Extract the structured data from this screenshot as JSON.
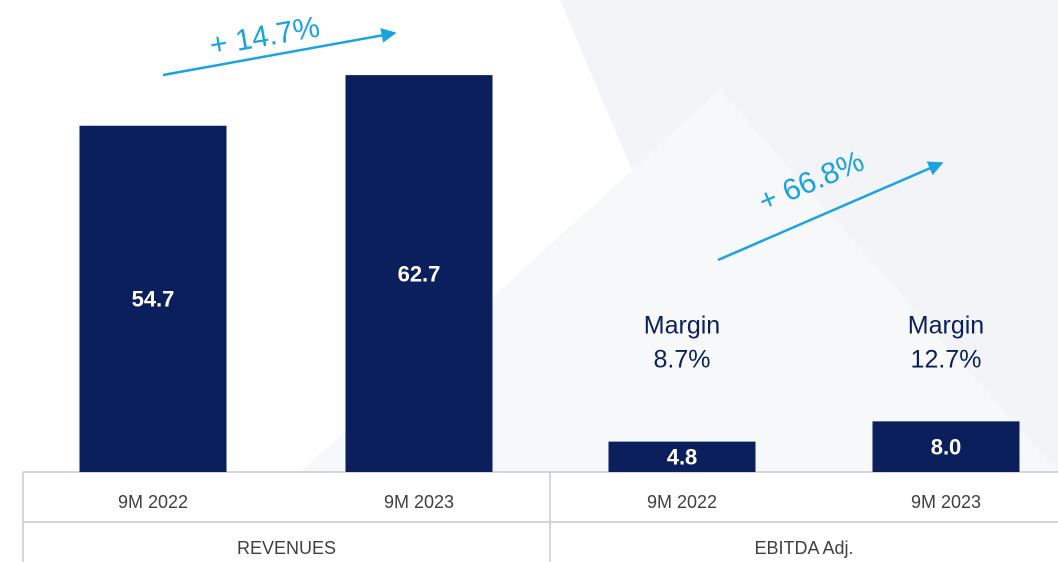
{
  "chart_data": {
    "type": "bar",
    "color": "#0a1f5c",
    "ylim": [
      0,
      70
    ],
    "groups": [
      {
        "label": "REVENUES",
        "growth": "+ 14.7%",
        "categories": [
          "9M 2022",
          "9M 2023"
        ],
        "values": [
          54.7,
          62.7
        ],
        "value_labels": [
          "54.7",
          "62.7"
        ]
      },
      {
        "label": "EBITDA Adj.",
        "growth": "+ 66.8%",
        "categories": [
          "9M 2022",
          "9M 2023"
        ],
        "values": [
          4.8,
          8.0
        ],
        "value_labels": [
          "4.8",
          "8.0"
        ],
        "margin_title": "Margin",
        "margins": [
          "8.7%",
          "12.7%"
        ]
      }
    ]
  }
}
